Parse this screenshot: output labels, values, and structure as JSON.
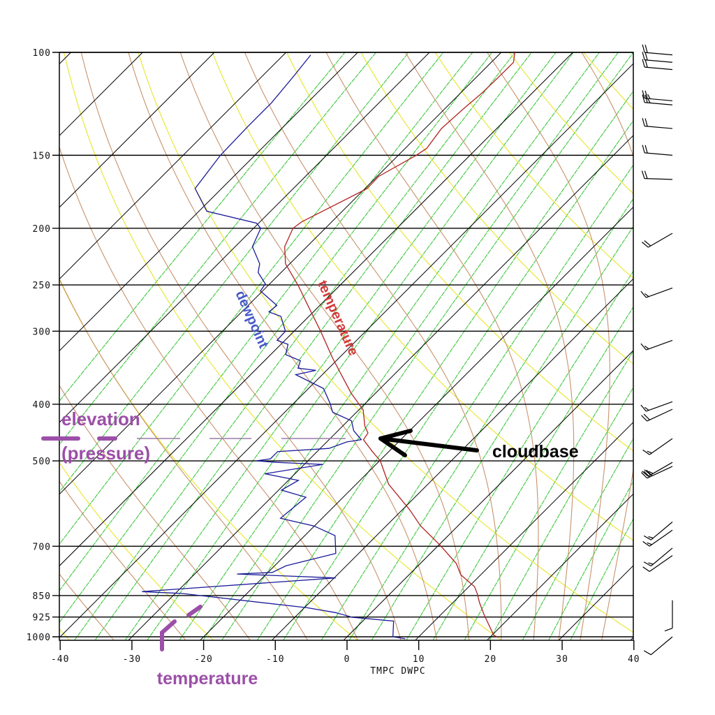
{
  "chart_data": {
    "type": "line",
    "title": "",
    "xlabel": "TMPC DWPC",
    "ylabel": "",
    "xlim": [
      -40,
      40
    ],
    "ylim": [
      1000,
      100
    ],
    "y_scale": "log",
    "grid": true,
    "x_ticks": [
      "-40",
      "-30",
      "-20",
      "-10",
      "0",
      "10",
      "20",
      "30",
      "40"
    ],
    "x_tick_values": [
      -40,
      -30,
      -20,
      -10,
      0,
      10,
      20,
      30,
      40
    ],
    "y_ticks": [
      "100",
      "150",
      "200",
      "250",
      "300",
      "400",
      "500",
      "700",
      "850",
      "925",
      "1000"
    ],
    "y_tick_values": [
      100,
      150,
      200,
      250,
      300,
      400,
      500,
      700,
      850,
      925,
      1000
    ],
    "background_lines": {
      "isotherms_color": "#000000",
      "dry_adiabats_color": "#e6e62a",
      "moist_adiabats_color": "#c8926c",
      "mixing_ratio_color": "#3cc83c"
    },
    "series": [
      {
        "key": "temperature",
        "color": "#b22222",
        "points": [
          [
            100,
            -58.1
          ],
          [
            104,
            -56.9
          ],
          [
            109,
            -56.9
          ],
          [
            117,
            -57.0
          ],
          [
            125,
            -57.4
          ],
          [
            135,
            -57.7
          ],
          [
            146,
            -57.0
          ],
          [
            150,
            -57.5
          ],
          [
            163,
            -59.8
          ],
          [
            171,
            -59.7
          ],
          [
            195,
            -64.2
          ],
          [
            200,
            -64.5
          ],
          [
            215,
            -63.1
          ],
          [
            230,
            -60.6
          ],
          [
            251,
            -55.7
          ],
          [
            275,
            -50.9
          ],
          [
            300,
            -46.3
          ],
          [
            334,
            -40.8
          ],
          [
            359,
            -36.9
          ],
          [
            383,
            -33.4
          ],
          [
            409,
            -29.4
          ],
          [
            436,
            -26.9
          ],
          [
            448,
            -25.5
          ],
          [
            460,
            -25.2
          ],
          [
            482,
            -22.3
          ],
          [
            500,
            -19.9
          ],
          [
            548,
            -15.5
          ],
          [
            606,
            -9.0
          ],
          [
            646,
            -5.2
          ],
          [
            696,
            0.1
          ],
          [
            749,
            5.0
          ],
          [
            783,
            7.2
          ],
          [
            821,
            10.8
          ],
          [
            843,
            12.1
          ],
          [
            874,
            13.7
          ],
          [
            916,
            16.0
          ],
          [
            995,
            20.3
          ],
          [
            1000,
            21.0
          ]
        ]
      },
      {
        "key": "dewpoint",
        "color": "#1a1a9a",
        "points": [
          [
            101,
            -86.2
          ],
          [
            110,
            -85.6
          ],
          [
            122,
            -85.0
          ],
          [
            134,
            -85.0
          ],
          [
            150,
            -84.8
          ],
          [
            171,
            -83.7
          ],
          [
            187,
            -78.9
          ],
          [
            196,
            -70.3
          ],
          [
            200,
            -69.0
          ],
          [
            215,
            -67.6
          ],
          [
            230,
            -64.2
          ],
          [
            238,
            -63.2
          ],
          [
            249,
            -60.6
          ],
          [
            256,
            -60.3
          ],
          [
            271,
            -56.0
          ],
          [
            278,
            -56.2
          ],
          [
            283,
            -53.9
          ],
          [
            300,
            -51.2
          ],
          [
            311,
            -51.1
          ],
          [
            316,
            -49.0
          ],
          [
            329,
            -47.9
          ],
          [
            337,
            -45.0
          ],
          [
            347,
            -44.3
          ],
          [
            350,
            -41.5
          ],
          [
            356,
            -43.7
          ],
          [
            376,
            -37.9
          ],
          [
            398,
            -35.0
          ],
          [
            413,
            -33.3
          ],
          [
            427,
            -29.5
          ],
          [
            444,
            -27.8
          ],
          [
            460,
            -25.5
          ],
          [
            464,
            -27.2
          ],
          [
            476,
            -28.8
          ],
          [
            482,
            -35.5
          ],
          [
            496,
            -35.5
          ],
          [
            500,
            -37.2
          ],
          [
            503,
            -34.1
          ],
          [
            507,
            -27.4
          ],
          [
            526,
            -34.2
          ],
          [
            540,
            -28.6
          ],
          [
            561,
            -29.6
          ],
          [
            577,
            -25.2
          ],
          [
            627,
            -25.8
          ],
          [
            646,
            -20.1
          ],
          [
            671,
            -15.8
          ],
          [
            720,
            -13.2
          ],
          [
            756,
            -18.4
          ],
          [
            776,
            -19.4
          ],
          [
            781,
            -24.1
          ],
          [
            793,
            -9.8
          ],
          [
            837,
            -34.9
          ],
          [
            843,
            -29.1
          ],
          [
            892,
            -9.6
          ],
          [
            909,
            -5.0
          ],
          [
            926,
            -2.0
          ],
          [
            940,
            4.3
          ],
          [
            1000,
            6.4
          ],
          [
            1008,
            8.4
          ]
        ]
      }
    ],
    "wind_barbs": [
      {
        "p": 101,
        "dir": 275,
        "spd": 20
      },
      {
        "p": 104,
        "dir": 275,
        "spd": 20
      },
      {
        "p": 107,
        "dir": 275,
        "spd": 20
      },
      {
        "p": 121,
        "dir": 275,
        "spd": 25
      },
      {
        "p": 123,
        "dir": 275,
        "spd": 25
      },
      {
        "p": 135,
        "dir": 275,
        "spd": 20
      },
      {
        "p": 150,
        "dir": 275,
        "spd": 20
      },
      {
        "p": 165,
        "dir": 272,
        "spd": 20
      },
      {
        "p": 204,
        "dir": 240,
        "spd": 20
      },
      {
        "p": 253,
        "dir": 250,
        "spd": 15
      },
      {
        "p": 311,
        "dir": 250,
        "spd": 15
      },
      {
        "p": 396,
        "dir": 250,
        "spd": 15
      },
      {
        "p": 408,
        "dir": 245,
        "spd": 20
      },
      {
        "p": 458,
        "dir": 235,
        "spd": 15
      },
      {
        "p": 503,
        "dir": 240,
        "spd": 25
      },
      {
        "p": 511,
        "dir": 245,
        "spd": 30
      },
      {
        "p": 636,
        "dir": 230,
        "spd": 15
      },
      {
        "p": 657,
        "dir": 235,
        "spd": 15
      },
      {
        "p": 705,
        "dir": 230,
        "spd": 15
      },
      {
        "p": 726,
        "dir": 235,
        "spd": 10
      },
      {
        "p": 866,
        "dir": 180,
        "spd": 10
      },
      {
        "p": 1000,
        "dir": 230,
        "spd": 10
      }
    ]
  },
  "annotations": {
    "elevation": "elevation",
    "pressure": "(pressure)",
    "temperature_axis": "temperature",
    "cloudbase": "cloudbase",
    "dewpoint_label": "dewpoint",
    "temperature_label": "temperature",
    "purple": "#9c4fa8",
    "dewpoint_color": "#4658c8",
    "temperature_color": "#d23a3a"
  }
}
